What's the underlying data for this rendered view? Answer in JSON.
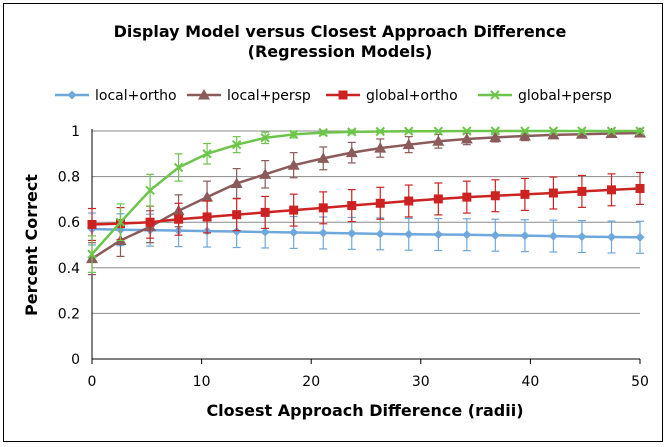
{
  "chart_data": {
    "type": "line",
    "title": [
      "Display Model versus Closest Approach Difference",
      "(Regression Models)"
    ],
    "xlabel": "Closest Approach Difference (radii)",
    "ylabel": "Percent Correct",
    "xlim": [
      0,
      50
    ],
    "ylim": [
      0,
      1
    ],
    "xticks": [
      0,
      10,
      20,
      30,
      40,
      50
    ],
    "yticks": [
      0,
      0.2,
      0.4,
      0.6,
      0.8,
      1
    ],
    "ytick_labels": [
      "0",
      "0.2",
      "0.4",
      "0.6",
      "0.8",
      "1"
    ],
    "grid": "horizontal",
    "legend_position": "top",
    "x": [
      0,
      2.6,
      5.3,
      7.9,
      10.5,
      13.2,
      15.8,
      18.4,
      21.1,
      23.7,
      26.3,
      28.9,
      31.6,
      34.2,
      36.8,
      39.5,
      42.1,
      44.7,
      47.4,
      50
    ],
    "series": [
      {
        "name": "local+ortho",
        "color": "#6fa8dc",
        "marker": "diamond",
        "values": [
          0.57,
          0.567,
          0.565,
          0.563,
          0.561,
          0.559,
          0.557,
          0.555,
          0.553,
          0.551,
          0.549,
          0.547,
          0.546,
          0.545,
          0.543,
          0.541,
          0.539,
          0.537,
          0.535,
          0.534
        ],
        "error": [
          0.07,
          0.07,
          0.07,
          0.07,
          0.07,
          0.07,
          0.07,
          0.07,
          0.07,
          0.07,
          0.07,
          0.07,
          0.07,
          0.07,
          0.07,
          0.07,
          0.07,
          0.07,
          0.07,
          0.07
        ]
      },
      {
        "name": "local+persp",
        "color": "#8b5a5a",
        "marker": "triangle",
        "values": [
          0.44,
          0.52,
          0.58,
          0.65,
          0.71,
          0.77,
          0.81,
          0.85,
          0.88,
          0.905,
          0.925,
          0.94,
          0.955,
          0.965,
          0.972,
          0.978,
          0.983,
          0.986,
          0.989,
          0.991
        ],
        "error": [
          0.07,
          0.07,
          0.07,
          0.07,
          0.07,
          0.065,
          0.06,
          0.055,
          0.05,
          0.045,
          0.04,
          0.035,
          0.03,
          0.025,
          0.02,
          0.02,
          0.015,
          0.015,
          0.01,
          0.01
        ]
      },
      {
        "name": "global+ortho",
        "color": "#cc2222",
        "marker": "square",
        "values": [
          0.59,
          0.594,
          0.6,
          0.613,
          0.623,
          0.633,
          0.643,
          0.653,
          0.663,
          0.673,
          0.683,
          0.693,
          0.702,
          0.71,
          0.716,
          0.722,
          0.728,
          0.735,
          0.742,
          0.748
        ],
        "error": [
          0.07,
          0.07,
          0.07,
          0.07,
          0.07,
          0.07,
          0.07,
          0.07,
          0.07,
          0.07,
          0.07,
          0.07,
          0.07,
          0.07,
          0.07,
          0.07,
          0.07,
          0.07,
          0.07,
          0.07
        ]
      },
      {
        "name": "global+persp",
        "color": "#6dc54c",
        "marker": "x",
        "values": [
          0.46,
          0.6,
          0.74,
          0.84,
          0.9,
          0.94,
          0.97,
          0.985,
          0.993,
          0.996,
          0.998,
          0.999,
          0.999,
          1.0,
          1.0,
          1.0,
          1.0,
          1.0,
          1.0,
          1.0
        ],
        "error": [
          0.08,
          0.08,
          0.07,
          0.06,
          0.045,
          0.035,
          0.025,
          0.015,
          0.01,
          0.008,
          0.005,
          0.004,
          0.003,
          0.002,
          0.002,
          0.002,
          0.002,
          0.002,
          0.002,
          0.002
        ]
      }
    ]
  }
}
